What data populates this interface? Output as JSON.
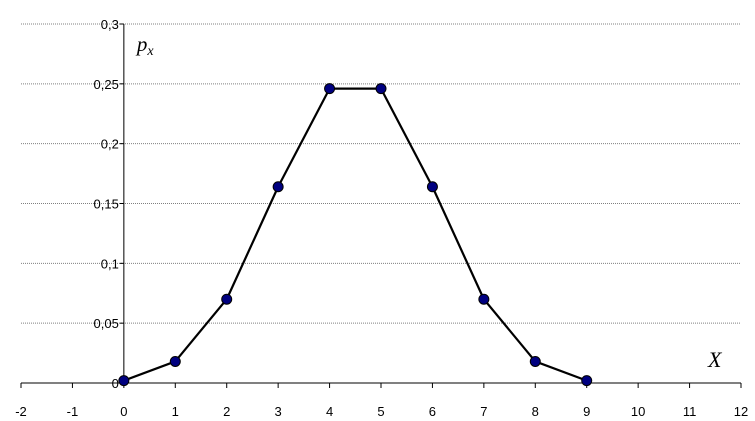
{
  "chart_data": {
    "type": "line",
    "xlabel": "X",
    "ylabel": "p",
    "ylabel_subscript": "x",
    "xlim": [
      -2,
      12
    ],
    "ylim": [
      0,
      0.3
    ],
    "x_ticks": [
      -2,
      -1,
      0,
      1,
      2,
      3,
      4,
      5,
      6,
      7,
      8,
      9,
      10,
      11,
      12
    ],
    "x_tick_labels": [
      "-2",
      "-1",
      "0",
      "1",
      "2",
      "3",
      "4",
      "5",
      "6",
      "7",
      "8",
      "9",
      "10",
      "11",
      "12"
    ],
    "y_ticks": [
      0,
      0.05,
      0.1,
      0.15,
      0.2,
      0.25,
      0.3
    ],
    "y_tick_labels": [
      "0",
      "0,05",
      "0,1",
      "0,15",
      "0,2",
      "0,25",
      "0,3"
    ],
    "grid": "horizontal dotted",
    "legend": "none",
    "series": [
      {
        "x": [
          0,
          1,
          2,
          3,
          4,
          5,
          6,
          7,
          8,
          9
        ],
        "values": [
          0.002,
          0.018,
          0.07,
          0.164,
          0.246,
          0.246,
          0.164,
          0.07,
          0.018,
          0.002
        ],
        "line_color": "#000000",
        "marker_fill": "#000080",
        "marker_stroke": "#000000"
      }
    ]
  }
}
